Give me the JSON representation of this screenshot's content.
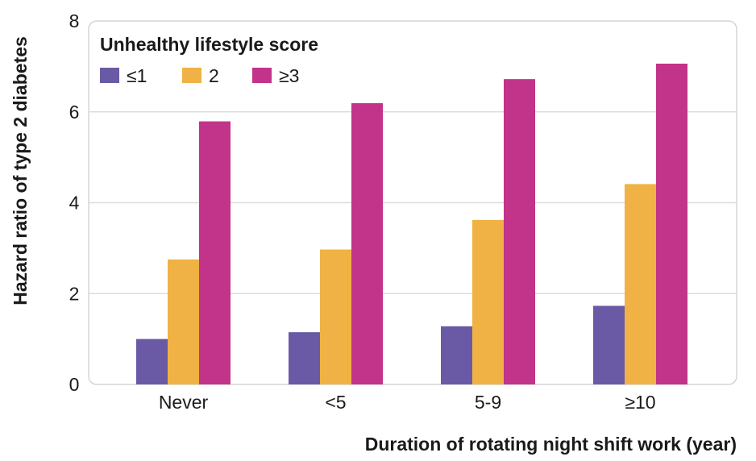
{
  "chart_data": {
    "type": "bar",
    "title": "",
    "xlabel": "Duration of rotating night shift work (year)",
    "ylabel": "Hazard ratio of type 2 diabetes",
    "categories": [
      "Never",
      "<5",
      "5-9",
      "≥10"
    ],
    "ylim": [
      0,
      8
    ],
    "yticks": [
      "0",
      "2",
      "4",
      "6",
      "8"
    ],
    "grid": true,
    "legend": {
      "title": "Unhealthy lifestyle score",
      "placement": "top-left"
    },
    "series": [
      {
        "name": "≤1",
        "color": "#6a5aa5",
        "values": [
          1.0,
          1.15,
          1.28,
          1.73
        ]
      },
      {
        "name": "2",
        "color": "#f0b245",
        "values": [
          2.75,
          2.97,
          3.62,
          4.41
        ]
      },
      {
        "name": "≥3",
        "color": "#c2338a",
        "values": [
          5.79,
          6.19,
          6.72,
          7.06
        ]
      }
    ]
  }
}
